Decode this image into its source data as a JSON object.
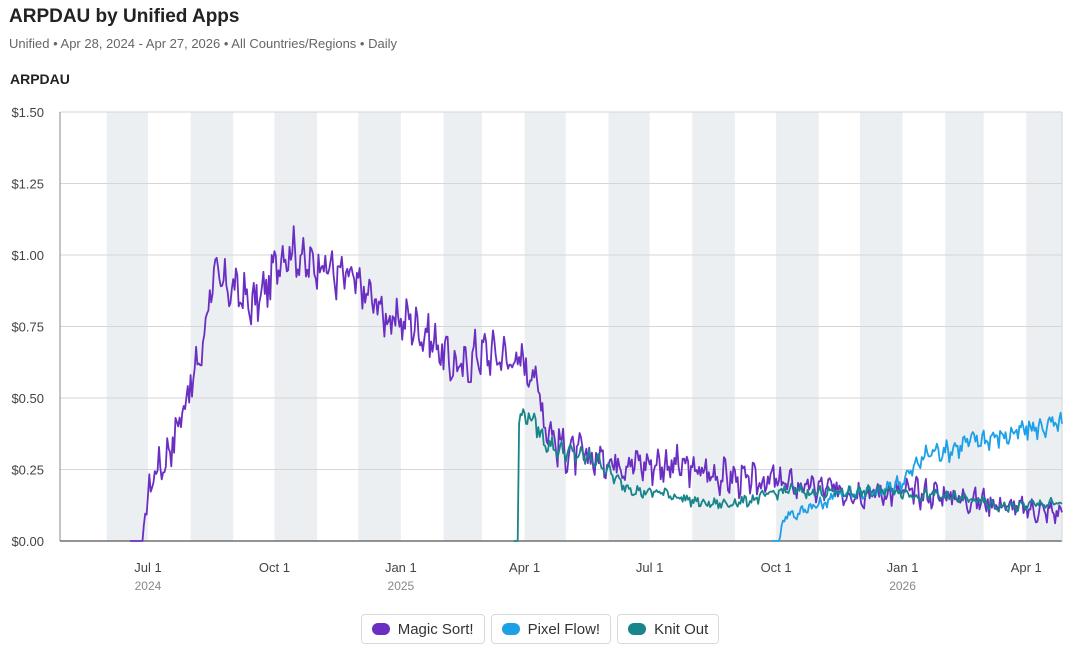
{
  "header": {
    "title": "ARPDAU by Unified Apps",
    "subtitle": "Unified • Apr 28, 2024 - Apr 27, 2026 • All Countries/Regions • Daily",
    "y_axis_title": "ARPDAU"
  },
  "chart_data": {
    "type": "line",
    "title": "ARPDAU by Unified Apps",
    "ylabel": "ARPDAU",
    "xlabel": "",
    "ylim": [
      0,
      1.5
    ],
    "y_ticks": [
      "$0.00",
      "$0.25",
      "$0.50",
      "$0.75",
      "$1.00",
      "$1.25",
      "$1.50"
    ],
    "x_range": [
      "2024-04-28",
      "2026-04-27"
    ],
    "x_ticks": [
      {
        "date": "2024-07-01",
        "label": "Jul 1",
        "year": "2024"
      },
      {
        "date": "2024-10-01",
        "label": "Oct 1",
        "year": ""
      },
      {
        "date": "2025-01-01",
        "label": "Jan 1",
        "year": "2025"
      },
      {
        "date": "2025-04-01",
        "label": "Apr 1",
        "year": ""
      },
      {
        "date": "2025-07-01",
        "label": "Jul 1",
        "year": ""
      },
      {
        "date": "2025-10-01",
        "label": "Oct 1",
        "year": ""
      },
      {
        "date": "2026-01-01",
        "label": "Jan 1",
        "year": "2026"
      },
      {
        "date": "2026-04-01",
        "label": "Apr 1",
        "year": ""
      }
    ],
    "grid": true,
    "weekend_shading": true,
    "legend_position": "bottom",
    "series": [
      {
        "name": "Magic Sort!",
        "color": "#6a2fc2",
        "noise": 0.06,
        "points": [
          [
            "2024-06-18",
            0.0
          ],
          [
            "2024-06-27",
            0.0
          ],
          [
            "2024-06-28",
            0.05
          ],
          [
            "2024-07-02",
            0.18
          ],
          [
            "2024-07-06",
            0.25
          ],
          [
            "2024-07-12",
            0.27
          ],
          [
            "2024-07-18",
            0.34
          ],
          [
            "2024-07-24",
            0.42
          ],
          [
            "2024-07-28",
            0.5
          ],
          [
            "2024-08-04",
            0.58
          ],
          [
            "2024-08-10",
            0.68
          ],
          [
            "2024-08-16",
            0.92
          ],
          [
            "2024-08-24",
            0.9
          ],
          [
            "2024-09-05",
            0.87
          ],
          [
            "2024-09-15",
            0.82
          ],
          [
            "2024-09-25",
            0.88
          ],
          [
            "2024-10-05",
            1.0
          ],
          [
            "2024-10-15",
            1.02
          ],
          [
            "2024-10-25",
            0.96
          ],
          [
            "2024-11-05",
            0.98
          ],
          [
            "2024-11-15",
            0.93
          ],
          [
            "2024-11-25",
            0.92
          ],
          [
            "2024-12-05",
            0.87
          ],
          [
            "2024-12-15",
            0.83
          ],
          [
            "2024-12-25",
            0.76
          ],
          [
            "2025-01-05",
            0.78
          ],
          [
            "2025-01-15",
            0.74
          ],
          [
            "2025-01-25",
            0.7
          ],
          [
            "2025-02-05",
            0.63
          ],
          [
            "2025-02-15",
            0.6
          ],
          [
            "2025-02-25",
            0.66
          ],
          [
            "2025-03-10",
            0.66
          ],
          [
            "2025-03-20",
            0.64
          ],
          [
            "2025-04-01",
            0.62
          ],
          [
            "2025-04-10",
            0.57
          ],
          [
            "2025-04-15",
            0.43
          ],
          [
            "2025-04-25",
            0.34
          ],
          [
            "2025-05-05",
            0.31
          ],
          [
            "2025-05-20",
            0.29
          ],
          [
            "2025-06-10",
            0.28
          ],
          [
            "2025-06-30",
            0.27
          ],
          [
            "2025-07-15",
            0.27
          ],
          [
            "2025-08-01",
            0.25
          ],
          [
            "2025-08-20",
            0.23
          ],
          [
            "2025-09-10",
            0.21
          ],
          [
            "2025-10-01",
            0.21
          ],
          [
            "2025-10-20",
            0.19
          ],
          [
            "2025-11-10",
            0.18
          ],
          [
            "2025-12-01",
            0.17
          ],
          [
            "2025-12-20",
            0.17
          ],
          [
            "2026-01-10",
            0.17
          ],
          [
            "2026-02-01",
            0.16
          ],
          [
            "2026-03-01",
            0.14
          ],
          [
            "2026-04-01",
            0.11
          ],
          [
            "2026-04-27",
            0.1
          ]
        ]
      },
      {
        "name": "Pixel Flow!",
        "color": "#1ea0e6",
        "noise": 0.03,
        "points": [
          [
            "2025-09-28",
            0.0
          ],
          [
            "2025-10-03",
            0.0
          ],
          [
            "2025-10-08",
            0.1
          ],
          [
            "2025-10-15",
            0.09
          ],
          [
            "2025-10-25",
            0.12
          ],
          [
            "2025-11-05",
            0.13
          ],
          [
            "2025-11-15",
            0.17
          ],
          [
            "2025-12-01",
            0.17
          ],
          [
            "2025-12-15",
            0.17
          ],
          [
            "2026-01-01",
            0.21
          ],
          [
            "2026-01-10",
            0.26
          ],
          [
            "2026-01-20",
            0.31
          ],
          [
            "2026-02-05",
            0.32
          ],
          [
            "2026-02-20",
            0.35
          ],
          [
            "2026-03-05",
            0.36
          ],
          [
            "2026-03-20",
            0.37
          ],
          [
            "2026-04-01",
            0.39
          ],
          [
            "2026-04-15",
            0.4
          ],
          [
            "2026-04-27",
            0.41
          ]
        ]
      },
      {
        "name": "Knit Out",
        "color": "#178589",
        "noise": 0.025,
        "points": [
          [
            "2025-03-24",
            0.0
          ],
          [
            "2025-03-27",
            0.0
          ],
          [
            "2025-03-28",
            0.43
          ],
          [
            "2025-04-03",
            0.44
          ],
          [
            "2025-04-08",
            0.42
          ],
          [
            "2025-04-15",
            0.35
          ],
          [
            "2025-04-25",
            0.32
          ],
          [
            "2025-05-10",
            0.3
          ],
          [
            "2025-05-25",
            0.28
          ],
          [
            "2025-06-10",
            0.2
          ],
          [
            "2025-06-25",
            0.17
          ],
          [
            "2025-07-10",
            0.17
          ],
          [
            "2025-07-25",
            0.15
          ],
          [
            "2025-08-10",
            0.13
          ],
          [
            "2025-08-25",
            0.13
          ],
          [
            "2025-09-10",
            0.14
          ],
          [
            "2025-09-25",
            0.16
          ],
          [
            "2025-10-10",
            0.18
          ],
          [
            "2025-10-25",
            0.17
          ],
          [
            "2025-11-10",
            0.17
          ],
          [
            "2025-11-25",
            0.17
          ],
          [
            "2025-12-10",
            0.17
          ],
          [
            "2025-12-25",
            0.18
          ],
          [
            "2026-01-10",
            0.16
          ],
          [
            "2026-01-25",
            0.16
          ],
          [
            "2026-02-10",
            0.15
          ],
          [
            "2026-02-25",
            0.14
          ],
          [
            "2026-03-10",
            0.12
          ],
          [
            "2026-03-25",
            0.12
          ],
          [
            "2026-04-10",
            0.13
          ],
          [
            "2026-04-27",
            0.13
          ]
        ]
      }
    ]
  }
}
